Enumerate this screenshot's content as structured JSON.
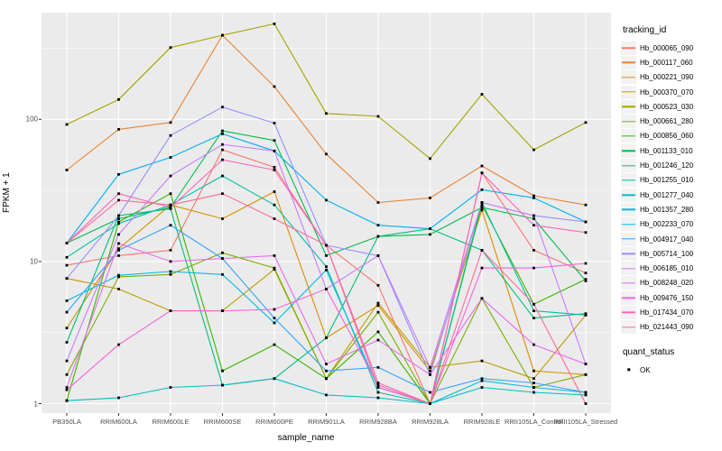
{
  "chart_data": {
    "type": "line",
    "title": "",
    "xlabel": "sample_name",
    "ylabel": "FPKM + 1",
    "y_scale": "log10",
    "y_ticks": [
      1,
      10,
      100
    ],
    "y_minor_ticks": [
      3.162,
      31.62,
      316.2
    ],
    "ylim": [
      1,
      520
    ],
    "grid": "on",
    "legend_position": "right",
    "legend_title": "tracking_id",
    "point_legend": {
      "title": "quant_status",
      "label": "OK",
      "marker_color": "#000000"
    },
    "panel_color": "#ebebeb",
    "x_categories": [
      "PB350LA",
      "RRIM600LA",
      "RRIM600LE",
      "RRIM600SE",
      "RRIM600PE",
      "RRIM901LA",
      "RRIM928BA",
      "RRIM928LA",
      "RRIM928LE",
      "RRII105LA_Control",
      "RRII105LA_Stressed"
    ],
    "series": [
      {
        "name": "Hb_000065_090",
        "color": "#F8766D",
        "values": [
          9.4,
          11,
          12,
          61,
          46,
          13,
          6.8,
          1.0,
          42,
          12,
          8.3
        ]
      },
      {
        "name": "Hb_000117_060",
        "color": "#EA8331",
        "values": [
          44,
          85,
          95,
          390,
          170,
          57,
          26,
          28,
          47,
          29,
          25
        ]
      },
      {
        "name": "Hb_000221_090",
        "color": "#D89000",
        "values": [
          3.4,
          12.3,
          25,
          20,
          31,
          2.9,
          4.9,
          1.7,
          23,
          1.7,
          1.6
        ]
      },
      {
        "name": "Hb_000370_070",
        "color": "#C09B00",
        "values": [
          7.6,
          6.4,
          4.5,
          4.5,
          8.8,
          1.5,
          5.1,
          1.8,
          2.0,
          1.5,
          4.2
        ]
      },
      {
        "name": "Hb_000523_030",
        "color": "#A3A500",
        "values": [
          92,
          138,
          320,
          390,
          470,
          110,
          105,
          53,
          150,
          61,
          95
        ]
      },
      {
        "name": "Hb_000661_280",
        "color": "#7CAE00",
        "values": [
          1.6,
          7.8,
          8.1,
          11.5,
          9.0,
          1.5,
          4.4,
          1.0,
          5.5,
          1.3,
          1.6
        ]
      },
      {
        "name": "Hb_000856_060",
        "color": "#39B600",
        "values": [
          1.05,
          19,
          30,
          1.7,
          2.6,
          1.5,
          3.2,
          1.0,
          25,
          5.0,
          7.5
        ]
      },
      {
        "name": "Hb_001133_010",
        "color": "#00BB4E",
        "values": [
          13.5,
          20,
          24,
          83,
          71,
          11,
          15,
          15.5,
          24,
          20,
          7.3
        ]
      },
      {
        "name": "Hb_001246_120",
        "color": "#00BF7D",
        "values": [
          2.7,
          21,
          23.5,
          1.35,
          1.5,
          2.9,
          15,
          17,
          12,
          4.0,
          4.3
        ]
      },
      {
        "name": "Hb_001255_010",
        "color": "#00C1A3",
        "values": [
          10.7,
          18.5,
          25,
          40,
          25,
          9.2,
          1.2,
          1.0,
          26,
          4.5,
          4.2
        ]
      },
      {
        "name": "Hb_001277_040",
        "color": "#00BFC4",
        "values": [
          1.05,
          1.1,
          1.3,
          1.35,
          1.5,
          1.15,
          1.1,
          1.0,
          1.3,
          1.2,
          1.15
        ]
      },
      {
        "name": "Hb_001357_280",
        "color": "#00BAE0",
        "values": [
          5.3,
          8.0,
          8.5,
          8.1,
          3.7,
          8.7,
          1.3,
          1.0,
          1.45,
          1.3,
          1.2
        ]
      },
      {
        "name": "Hb_002233_070",
        "color": "#00B0F6",
        "values": [
          13.5,
          41,
          54,
          79,
          60,
          27,
          18,
          17,
          32,
          28,
          19
        ]
      },
      {
        "name": "Hb_004917_040",
        "color": "#35A2FF",
        "values": [
          4.4,
          12,
          18,
          10.5,
          4.0,
          1.7,
          1.8,
          1.2,
          1.5,
          1.4,
          1.2
        ]
      },
      {
        "name": "Hb_005714_100",
        "color": "#9590FF",
        "values": [
          7.6,
          21,
          77,
          122,
          94,
          13,
          11,
          1.6,
          26,
          21,
          19
        ]
      },
      {
        "name": "Hb_006185_010",
        "color": "#C77CFF",
        "values": [
          2.0,
          15.5,
          40,
          66.5,
          60,
          6.4,
          11,
          1.8,
          26,
          21,
          1.9
        ]
      },
      {
        "name": "Hb_008248_020",
        "color": "#E76BF3",
        "values": [
          1.3,
          13.4,
          10,
          10.5,
          11,
          1.9,
          2.8,
          1.6,
          5.5,
          2.6,
          1.9
        ]
      },
      {
        "name": "Hb_009476_150",
        "color": "#FA62DB",
        "values": [
          1.25,
          2.6,
          4.5,
          4.5,
          4.6,
          6.4,
          1.35,
          1.0,
          9.0,
          9.0,
          9.7
        ]
      },
      {
        "name": "Hb_017434_070",
        "color": "#FF62BC",
        "values": [
          13.5,
          30,
          24,
          52,
          44,
          13,
          1.3,
          1.0,
          42,
          18,
          16
        ]
      },
      {
        "name": "Hb_021443_090",
        "color": "#FF6A98",
        "values": [
          13.5,
          27,
          25,
          30,
          20,
          13,
          1.4,
          1.0,
          12,
          5.0,
          1.0
        ]
      }
    ]
  }
}
